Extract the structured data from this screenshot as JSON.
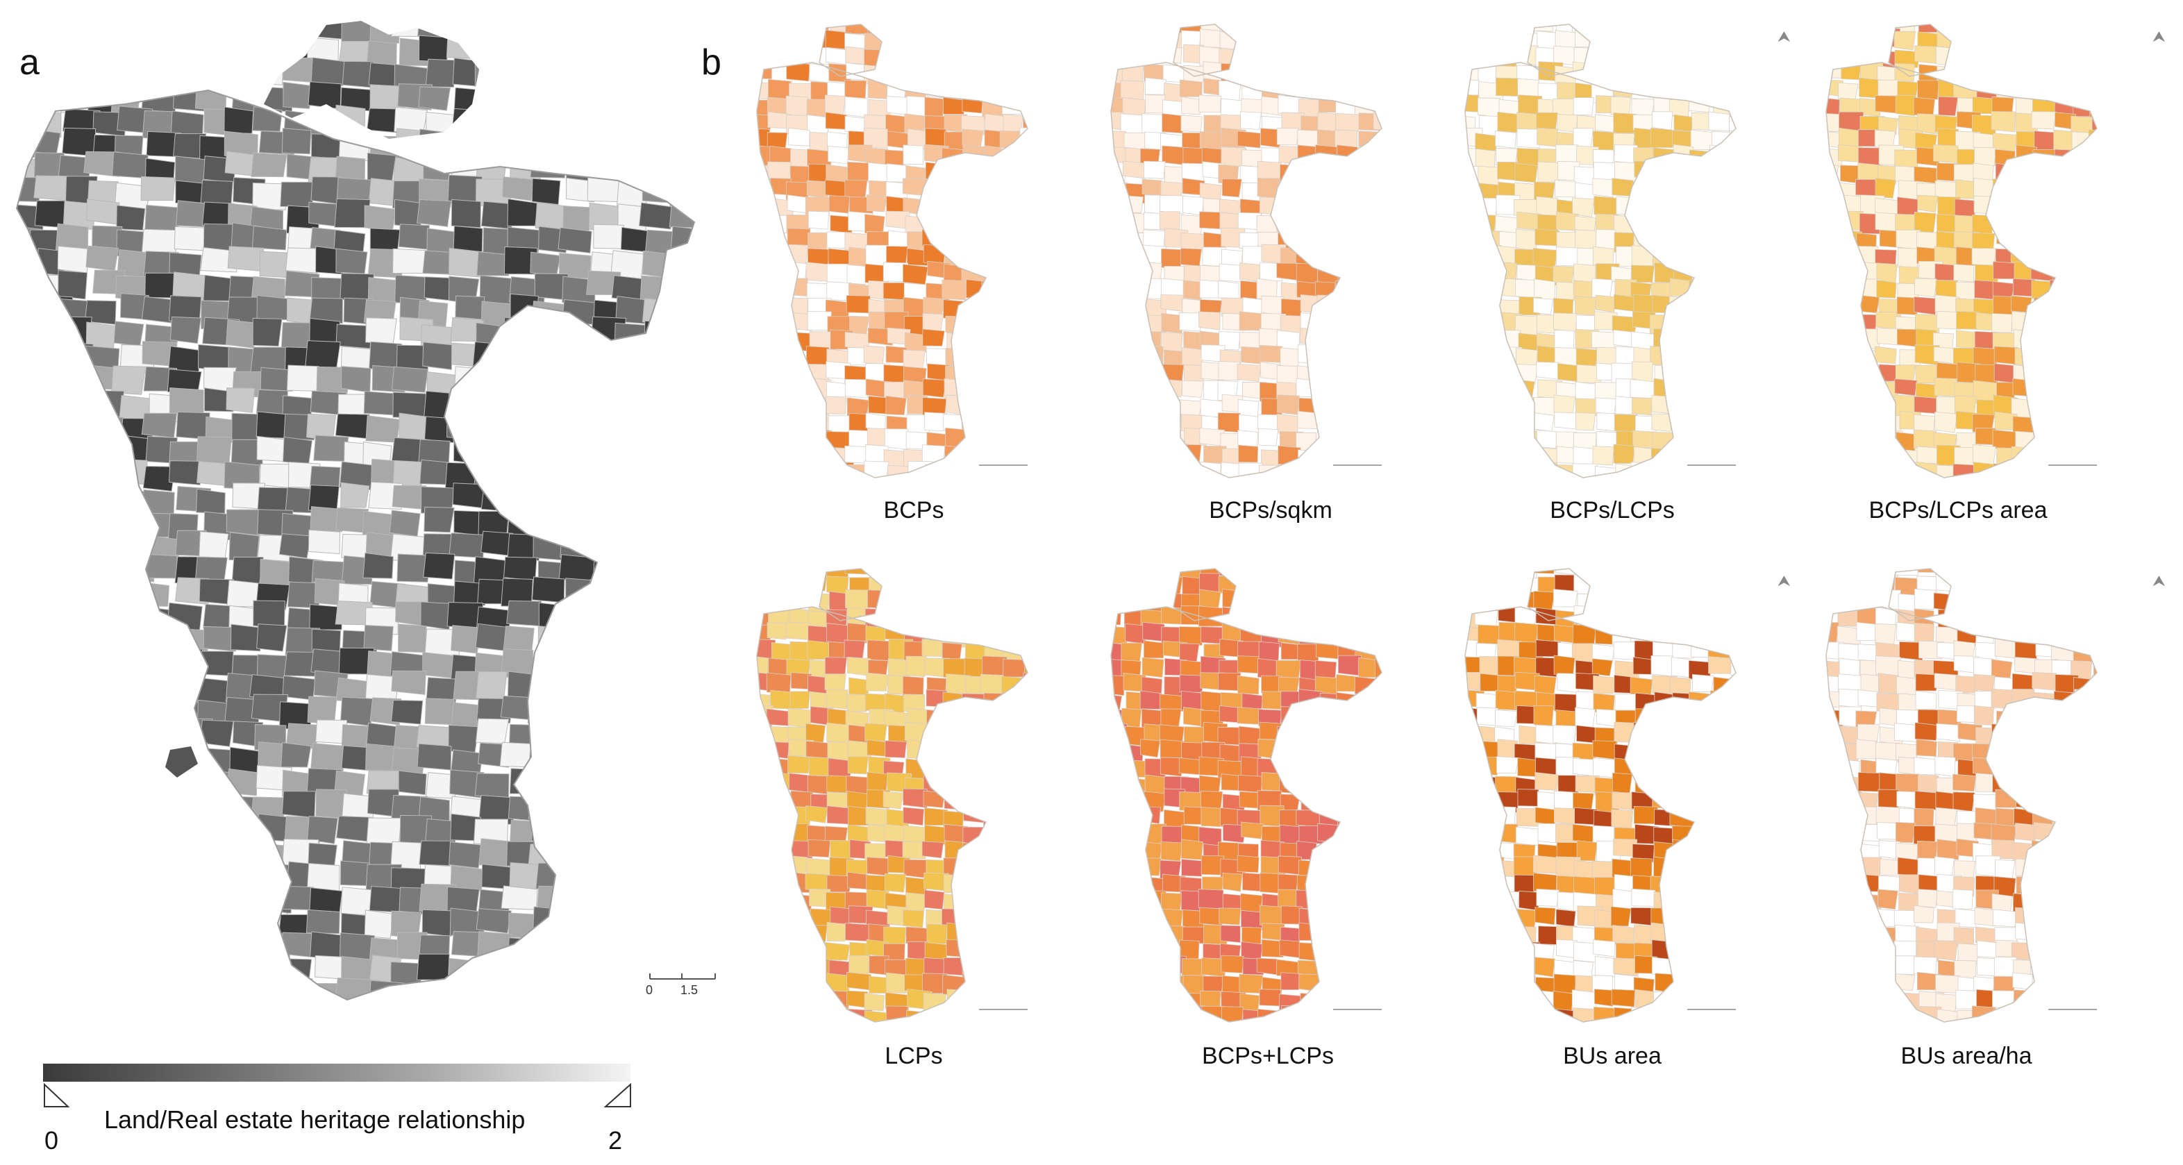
{
  "panel_a": {
    "letter": "a",
    "legend": {
      "title": "Land/Real estate heritage relationship",
      "min": "0",
      "max": "2",
      "colors": [
        "#3a3a3a",
        "#6d6d6d",
        "#a8a8a8",
        "#f4f4f4"
      ]
    },
    "scale": {
      "labels": [
        "0",
        "1.5"
      ]
    }
  },
  "panel_b": {
    "letter": "b",
    "maps": [
      {
        "label": "BCPs",
        "palette": [
          "#ffffff",
          "#fbe3cf",
          "#f7c39b",
          "#f19a5b",
          "#ec7d2c"
        ]
      },
      {
        "label": "BCPs/sqkm",
        "palette": [
          "#ffffff",
          "#fff3ea",
          "#fbe0ca",
          "#f5bf95",
          "#ef8d4a"
        ]
      },
      {
        "label": "BCPs/LCPs",
        "palette": [
          "#ffffff",
          "#fffaf0",
          "#fdf0d2",
          "#f8dc9e",
          "#efc058"
        ]
      },
      {
        "label": "BCPs/LCPs area",
        "palette": [
          "#fdf3dc",
          "#f9dd99",
          "#f4c04a",
          "#ef9a3c",
          "#e77a5a"
        ]
      },
      {
        "label": "LCPs",
        "palette": [
          "#f5d98c",
          "#f2c34e",
          "#eea536",
          "#ec8a52",
          "#e97963"
        ]
      },
      {
        "label": "BCPs+LCPs",
        "palette": [
          "#f4a24a",
          "#f1893a",
          "#ee7d45",
          "#ea735a",
          "#e66b62"
        ]
      },
      {
        "label": "BUs area",
        "palette": [
          "#ffffff",
          "#fbd6a8",
          "#f5a13c",
          "#e8821c",
          "#b9471a"
        ]
      },
      {
        "label": "BUs area/ha",
        "palette": [
          "#ffffff",
          "#fdf0e4",
          "#f8d2b0",
          "#f1a56a",
          "#d96521"
        ]
      }
    ]
  }
}
